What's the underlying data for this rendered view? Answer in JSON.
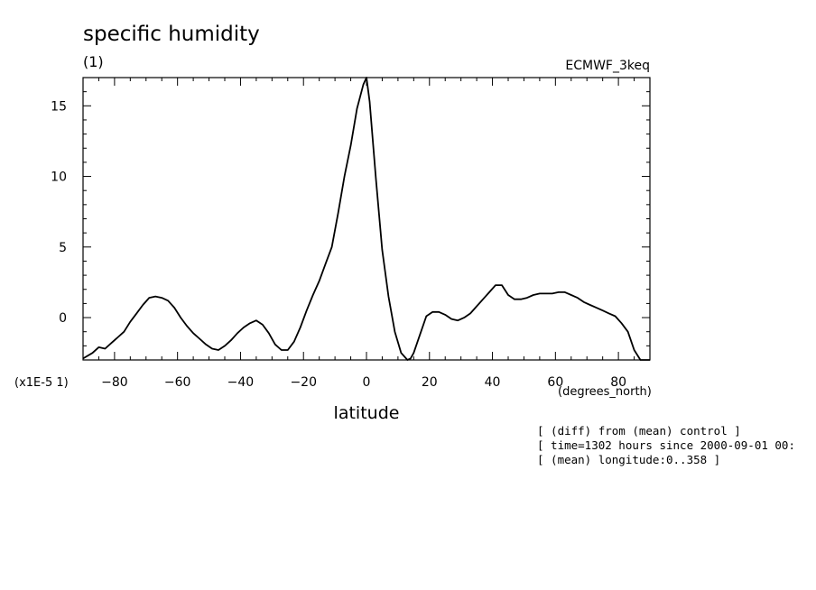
{
  "chart_data": {
    "type": "line",
    "title": "specific humidity",
    "subtitle": "(1)",
    "dataset": "ECMWF_3keq",
    "xlabel": "latitude",
    "xunits": "(degrees_north)",
    "yscale_label": "(x1E-5 1)",
    "xlim": [
      -90,
      90
    ],
    "ylim": [
      -3,
      17
    ],
    "xticks": [
      -80,
      -60,
      -40,
      -20,
      0,
      20,
      40,
      60,
      80
    ],
    "yticks": [
      0,
      5,
      10,
      15
    ],
    "grid": false,
    "series": [
      {
        "x": [
          -90,
          -87,
          -85,
          -83,
          -81,
          -79,
          -77,
          -75,
          -73,
          -71,
          -69,
          -67,
          -65,
          -63,
          -61,
          -59,
          -57,
          -55,
          -53,
          -51,
          -49,
          -47,
          -45,
          -43,
          -41,
          -39,
          -37,
          -35,
          -33,
          -31,
          -29,
          -27,
          -25,
          -23,
          -21,
          -19,
          -17,
          -15,
          -13,
          -11,
          -9,
          -7,
          -5,
          -3,
          -1,
          0,
          1,
          3,
          5,
          7,
          9,
          11,
          13,
          14,
          15,
          17,
          19,
          21,
          23,
          25,
          27,
          29,
          31,
          33,
          35,
          37,
          39,
          41,
          43,
          45,
          47,
          49,
          51,
          53,
          55,
          57,
          59,
          61,
          63,
          65,
          67,
          69,
          71,
          73,
          75,
          77,
          79,
          81,
          83,
          85,
          87,
          89,
          90
        ],
        "values": [
          -2.9,
          -2.5,
          -2.1,
          -2.2,
          -1.8,
          -1.4,
          -1.0,
          -0.3,
          0.3,
          0.9,
          1.4,
          1.5,
          1.4,
          1.2,
          0.7,
          0.0,
          -0.6,
          -1.1,
          -1.5,
          -1.9,
          -2.2,
          -2.3,
          -2.0,
          -1.6,
          -1.1,
          -0.7,
          -0.4,
          -0.2,
          -0.5,
          -1.1,
          -1.9,
          -2.3,
          -2.3,
          -1.7,
          -0.7,
          0.5,
          1.6,
          2.6,
          3.8,
          5.0,
          7.4,
          10.0,
          12.2,
          14.8,
          16.5,
          17.2,
          15.3,
          9.8,
          4.8,
          1.5,
          -1.0,
          -2.5,
          -3.0,
          -2.9,
          -2.5,
          -1.2,
          0.1,
          0.4,
          0.4,
          0.2,
          -0.1,
          -0.2,
          0.0,
          0.3,
          0.8,
          1.3,
          1.8,
          2.3,
          2.3,
          1.6,
          1.3,
          1.3,
          1.4,
          1.6,
          1.7,
          1.7,
          1.7,
          1.8,
          1.8,
          1.6,
          1.4,
          1.1,
          0.9,
          0.7,
          0.5,
          0.3,
          0.1,
          -0.4,
          -1.0,
          -2.3,
          -3.1,
          -3.3,
          -3.1
        ]
      }
    ]
  },
  "notes": [
    "[ (diff) from (mean) control ]",
    "[ time=1302 hours since 2000-09-01 00:",
    "[ (mean) longitude:0..358 ]"
  ]
}
